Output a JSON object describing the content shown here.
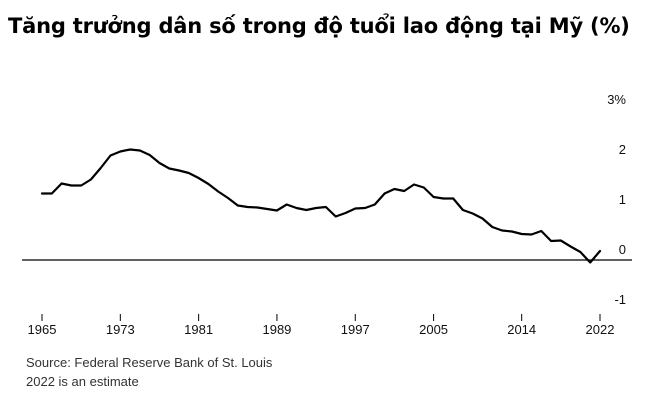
{
  "chart_data": {
    "type": "line",
    "title": "Tăng trưởng dân số trong độ tuổi lao động tại Mỹ (%)",
    "xlabel": "",
    "ylabel": "",
    "xlim": [
      1965,
      2022
    ],
    "ylim": [
      -1,
      3
    ],
    "x_ticks": [
      1965,
      1973,
      1981,
      1989,
      1997,
      2005,
      2014,
      2022
    ],
    "x_tick_labels": [
      "1965",
      "1973",
      "1981",
      "1989",
      "1997",
      "2005",
      "2014",
      "2022"
    ],
    "y_ticks": [
      3,
      2,
      1,
      0,
      -1
    ],
    "y_tick_labels": [
      "3%",
      "2",
      "1",
      "0",
      "-1"
    ],
    "grid": false,
    "zero_line": true,
    "series": [
      {
        "name": "",
        "color": "#000000",
        "x": [
          1965,
          1966,
          1967,
          1968,
          1969,
          1970,
          1971,
          1972,
          1973,
          1974,
          1975,
          1976,
          1977,
          1978,
          1979,
          1980,
          1981,
          1982,
          1983,
          1984,
          1985,
          1986,
          1987,
          1988,
          1989,
          1990,
          1991,
          1992,
          1993,
          1994,
          1995,
          1996,
          1997,
          1998,
          1999,
          2000,
          2001,
          2002,
          2003,
          2004,
          2005,
          2006,
          2007,
          2008,
          2009,
          2010,
          2011,
          2012,
          2013,
          2014,
          2015,
          2016,
          2017,
          2018,
          2019,
          2020,
          2021,
          2022
        ],
        "values": [
          1.33,
          1.33,
          1.53,
          1.49,
          1.49,
          1.61,
          1.84,
          2.09,
          2.17,
          2.21,
          2.19,
          2.1,
          1.94,
          1.83,
          1.79,
          1.74,
          1.64,
          1.52,
          1.37,
          1.24,
          1.09,
          1.06,
          1.05,
          1.02,
          0.99,
          1.11,
          1.04,
          1.0,
          1.04,
          1.06,
          0.87,
          0.94,
          1.03,
          1.04,
          1.11,
          1.33,
          1.42,
          1.38,
          1.51,
          1.45,
          1.26,
          1.23,
          1.23,
          1.0,
          0.93,
          0.83,
          0.66,
          0.59,
          0.57,
          0.52,
          0.51,
          0.58,
          0.38,
          0.39,
          0.27,
          0.16,
          -0.05,
          0.18
        ]
      }
    ],
    "annotations": []
  },
  "footer": {
    "source": "Source: Federal Reserve Bank of St. Louis",
    "note": "2022 is an estimate"
  }
}
